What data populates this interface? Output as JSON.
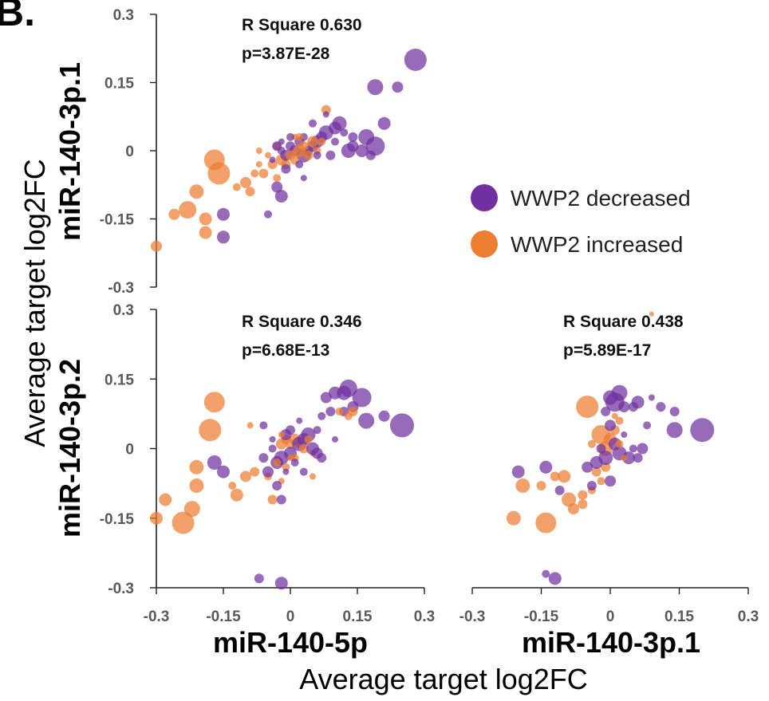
{
  "panel_label": "B.",
  "y_axis_title": "Average target log2FC",
  "x_axis_title": "Average target log2FC",
  "legend": [
    {
      "label": "WWP2 decreased",
      "color": "#7030A0"
    },
    {
      "label": "WWP2 increased",
      "color": "#ED7D31"
    }
  ],
  "chart_data": [
    {
      "type": "scatter",
      "xlabel": "miR-140-5p",
      "ylabel": "miR-140-3p.1",
      "xlim": [
        -0.3,
        0.3
      ],
      "ylim": [
        -0.3,
        0.3
      ],
      "yticks": [
        "0.3",
        "0.15",
        "0",
        "-0.15",
        "-0.3"
      ],
      "xticks": [],
      "annotation": [
        "R Square 0.630",
        "p=3.87E-28"
      ],
      "series": [
        {
          "name": "WWP2 decreased",
          "color": "#7030A0",
          "points": [
            [
              0.28,
              0.2,
              14
            ],
            [
              0.24,
              0.14,
              7
            ],
            [
              0.19,
              0.14,
              10
            ],
            [
              0.21,
              0.06,
              8
            ],
            [
              0.19,
              0.01,
              12
            ],
            [
              0.17,
              0.03,
              10
            ],
            [
              0.14,
              0.03,
              6
            ],
            [
              0.11,
              0.06,
              9
            ],
            [
              0.1,
              0.05,
              8
            ],
            [
              0.08,
              0.04,
              9
            ],
            [
              0.07,
              0.03,
              7
            ],
            [
              0.06,
              0.02,
              8
            ],
            [
              0.05,
              0.01,
              7
            ],
            [
              0.04,
              0.0,
              6
            ],
            [
              0.03,
              -0.01,
              9
            ],
            [
              0.02,
              0.02,
              6
            ],
            [
              0.01,
              0.0,
              7
            ],
            [
              0.0,
              0.01,
              6
            ],
            [
              -0.01,
              -0.01,
              7
            ],
            [
              -0.02,
              0.0,
              5
            ],
            [
              -0.03,
              0.01,
              6
            ],
            [
              0.03,
              0.03,
              5
            ],
            [
              0.06,
              -0.01,
              5
            ],
            [
              0.13,
              0.0,
              9
            ],
            [
              0.16,
              0.0,
              8
            ],
            [
              0.12,
              0.04,
              5
            ],
            [
              0.09,
              -0.01,
              6
            ],
            [
              0.02,
              -0.03,
              5
            ],
            [
              -0.01,
              -0.04,
              6
            ],
            [
              -0.03,
              -0.08,
              7
            ],
            [
              -0.02,
              -0.1,
              8
            ],
            [
              -0.05,
              -0.14,
              5
            ],
            [
              -0.15,
              -0.14,
              8
            ],
            [
              -0.15,
              -0.19,
              8
            ],
            [
              0.0,
              0.03,
              5
            ],
            [
              -0.02,
              0.02,
              4
            ],
            [
              0.05,
              0.06,
              5
            ],
            [
              0.08,
              0.08,
              4
            ],
            [
              0.1,
              0.02,
              5
            ],
            [
              0.14,
              0.01,
              7
            ],
            [
              0.18,
              -0.01,
              6
            ],
            [
              0.03,
              -0.06,
              4
            ],
            [
              -0.04,
              -0.02,
              4
            ]
          ]
        },
        {
          "name": "WWP2 increased",
          "color": "#ED7D31",
          "points": [
            [
              -0.3,
              -0.21,
              7
            ],
            [
              -0.26,
              -0.14,
              7
            ],
            [
              -0.23,
              -0.13,
              11
            ],
            [
              -0.19,
              -0.15,
              8
            ],
            [
              -0.21,
              -0.09,
              9
            ],
            [
              -0.19,
              -0.18,
              8
            ],
            [
              -0.17,
              -0.02,
              13
            ],
            [
              -0.16,
              -0.05,
              14
            ],
            [
              -0.1,
              -0.07,
              7
            ],
            [
              -0.09,
              -0.09,
              6
            ],
            [
              -0.08,
              -0.05,
              5
            ],
            [
              -0.06,
              -0.05,
              6
            ],
            [
              -0.04,
              -0.03,
              6
            ],
            [
              -0.03,
              0.01,
              5
            ],
            [
              -0.02,
              -0.02,
              7
            ],
            [
              -0.01,
              -0.03,
              6
            ],
            [
              0.0,
              -0.01,
              6
            ],
            [
              0.01,
              -0.02,
              6
            ],
            [
              0.02,
              0.0,
              8
            ],
            [
              0.03,
              0.01,
              6
            ],
            [
              0.04,
              -0.01,
              6
            ],
            [
              0.05,
              0.02,
              7
            ],
            [
              0.07,
              0.02,
              5
            ],
            [
              0.08,
              0.09,
              6
            ],
            [
              0.02,
              0.03,
              5
            ],
            [
              -0.05,
              -0.01,
              4
            ],
            [
              -0.07,
              0.0,
              4
            ],
            [
              -0.03,
              -0.06,
              5
            ],
            [
              0.06,
              0.0,
              5
            ],
            [
              -0.12,
              -0.08,
              5
            ],
            [
              -0.07,
              -0.03,
              4
            ],
            [
              0.01,
              0.03,
              4
            ]
          ]
        }
      ]
    },
    {
      "type": "scatter",
      "xlabel": "miR-140-5p",
      "ylabel": "miR-140-3p.2",
      "xlim": [
        -0.3,
        0.3
      ],
      "ylim": [
        -0.3,
        0.3
      ],
      "yticks": [
        "0.3",
        "0.15",
        "0",
        "-0.15",
        "-0.3"
      ],
      "xticks": [
        "-0.3",
        "-0.15",
        "0",
        "0.15",
        "0.3"
      ],
      "annotation": [
        "R Square 0.346",
        "p=6.68E-13"
      ],
      "series": [
        {
          "name": "WWP2 decreased",
          "color": "#7030A0",
          "points": [
            [
              0.25,
              0.05,
              15
            ],
            [
              0.21,
              0.07,
              7
            ],
            [
              0.16,
              0.11,
              12
            ],
            [
              0.17,
              0.06,
              10
            ],
            [
              0.13,
              0.13,
              11
            ],
            [
              0.12,
              0.12,
              9
            ],
            [
              0.1,
              0.12,
              8
            ],
            [
              0.08,
              0.11,
              7
            ],
            [
              0.14,
              0.09,
              7
            ],
            [
              0.12,
              0.08,
              6
            ],
            [
              0.09,
              0.08,
              6
            ],
            [
              0.07,
              0.07,
              5
            ],
            [
              0.04,
              0.03,
              9
            ],
            [
              0.03,
              0.02,
              8
            ],
            [
              0.02,
              0.01,
              9
            ],
            [
              0.0,
              -0.01,
              8
            ],
            [
              -0.02,
              -0.02,
              9
            ],
            [
              -0.03,
              -0.03,
              8
            ],
            [
              -0.01,
              0.03,
              7
            ],
            [
              0.0,
              0.04,
              6
            ],
            [
              0.05,
              0.0,
              8
            ],
            [
              0.06,
              -0.01,
              7
            ],
            [
              0.07,
              -0.02,
              6
            ],
            [
              -0.05,
              -0.05,
              7
            ],
            [
              -0.06,
              -0.02,
              6
            ],
            [
              -0.04,
              0.0,
              5
            ],
            [
              -0.03,
              -0.08,
              6
            ],
            [
              -0.02,
              -0.11,
              6
            ],
            [
              -0.17,
              -0.03,
              9
            ],
            [
              -0.15,
              -0.05,
              8
            ],
            [
              -0.06,
              0.05,
              5
            ],
            [
              -0.07,
              -0.28,
              6
            ],
            [
              -0.02,
              -0.29,
              8
            ],
            [
              0.03,
              -0.05,
              5
            ],
            [
              0.01,
              -0.03,
              5
            ],
            [
              0.1,
              0.02,
              4
            ],
            [
              -0.01,
              -0.05,
              4
            ],
            [
              0.02,
              0.06,
              4
            ],
            [
              0.06,
              0.04,
              5
            ],
            [
              -0.04,
              0.02,
              4
            ]
          ]
        },
        {
          "name": "WWP2 increased",
          "color": "#ED7D31",
          "points": [
            [
              -0.17,
              0.1,
              13
            ],
            [
              -0.18,
              0.04,
              14
            ],
            [
              -0.24,
              -0.16,
              14
            ],
            [
              -0.21,
              -0.04,
              9
            ],
            [
              -0.21,
              -0.08,
              9
            ],
            [
              -0.22,
              -0.13,
              10
            ],
            [
              -0.28,
              -0.11,
              8
            ],
            [
              -0.3,
              -0.15,
              8
            ],
            [
              -0.12,
              -0.1,
              8
            ],
            [
              -0.1,
              -0.06,
              7
            ],
            [
              -0.08,
              -0.05,
              6
            ],
            [
              -0.05,
              -0.06,
              5
            ],
            [
              -0.02,
              0.01,
              7
            ],
            [
              -0.01,
              0.02,
              6
            ],
            [
              0.0,
              0.01,
              6
            ],
            [
              0.01,
              0.02,
              7
            ],
            [
              0.02,
              0.01,
              5
            ],
            [
              0.03,
              0.0,
              6
            ],
            [
              0.04,
              0.02,
              5
            ],
            [
              0.05,
              -0.01,
              4
            ],
            [
              0.01,
              -0.02,
              5
            ],
            [
              -0.01,
              -0.04,
              5
            ],
            [
              -0.03,
              -0.03,
              5
            ],
            [
              -0.04,
              -0.11,
              6
            ],
            [
              -0.02,
              0.03,
              4
            ],
            [
              0.0,
              -0.02,
              4
            ],
            [
              0.14,
              0.08,
              6
            ],
            [
              0.11,
              0.08,
              5
            ],
            [
              0.13,
              0.07,
              5
            ],
            [
              -0.13,
              -0.08,
              5
            ],
            [
              -0.09,
              0.05,
              4
            ],
            [
              -0.02,
              -0.07,
              4
            ],
            [
              0.05,
              -0.06,
              4
            ]
          ]
        }
      ]
    },
    {
      "type": "scatter",
      "xlabel": "miR-140-3p.1",
      "ylabel": "miR-140-3p.2",
      "xlim": [
        -0.3,
        0.3
      ],
      "ylim": [
        -0.3,
        0.3
      ],
      "yticks": [],
      "xticks": [
        "-0.3",
        "-0.15",
        "0",
        "0.15",
        "0.3"
      ],
      "annotation": [
        "R Square 0.438",
        "p=5.89E-17"
      ],
      "series": [
        {
          "name": "WWP2 decreased",
          "color": "#7030A0",
          "points": [
            [
              0.2,
              0.04,
              15
            ],
            [
              0.14,
              0.04,
              10
            ],
            [
              0.14,
              0.08,
              6
            ],
            [
              0.11,
              0.09,
              6
            ],
            [
              0.06,
              0.1,
              8
            ],
            [
              0.05,
              0.09,
              6
            ],
            [
              0.03,
              0.09,
              7
            ],
            [
              0.02,
              0.12,
              10
            ],
            [
              0.01,
              0.1,
              12
            ],
            [
              0.0,
              0.11,
              9
            ],
            [
              -0.01,
              0.08,
              6
            ],
            [
              0.0,
              0.05,
              7
            ],
            [
              0.01,
              0.01,
              8
            ],
            [
              0.02,
              -0.01,
              9
            ],
            [
              0.04,
              -0.02,
              8
            ],
            [
              0.06,
              -0.02,
              6
            ],
            [
              0.07,
              0.0,
              7
            ],
            [
              -0.01,
              -0.02,
              9
            ],
            [
              -0.03,
              -0.03,
              8
            ],
            [
              -0.05,
              -0.04,
              7
            ],
            [
              -0.02,
              0.0,
              6
            ],
            [
              0.0,
              -0.07,
              7
            ],
            [
              -0.04,
              -0.08,
              6
            ],
            [
              -0.11,
              -0.09,
              6
            ],
            [
              -0.14,
              -0.04,
              8
            ],
            [
              -0.14,
              -0.27,
              5
            ],
            [
              -0.12,
              -0.28,
              8
            ],
            [
              0.08,
              0.05,
              5
            ],
            [
              0.05,
              0.0,
              5
            ],
            [
              -0.2,
              -0.05,
              8
            ],
            [
              0.09,
              0.11,
              4
            ],
            [
              0.03,
              0.03,
              4
            ]
          ]
        },
        {
          "name": "WWP2 increased",
          "color": "#ED7D31",
          "points": [
            [
              -0.05,
              0.09,
              14
            ],
            [
              -0.14,
              -0.16,
              13
            ],
            [
              -0.19,
              -0.08,
              9
            ],
            [
              -0.21,
              -0.15,
              9
            ],
            [
              -0.1,
              -0.06,
              8
            ],
            [
              -0.09,
              -0.11,
              9
            ],
            [
              -0.08,
              -0.13,
              7
            ],
            [
              -0.06,
              -0.1,
              6
            ],
            [
              -0.04,
              -0.09,
              5
            ],
            [
              -0.02,
              0.03,
              12
            ],
            [
              -0.01,
              0.0,
              9
            ],
            [
              0.0,
              0.02,
              8
            ],
            [
              0.01,
              0.04,
              6
            ],
            [
              0.02,
              0.06,
              5
            ],
            [
              -0.03,
              -0.05,
              6
            ],
            [
              -0.02,
              -0.07,
              5
            ],
            [
              -0.01,
              -0.04,
              6
            ],
            [
              -0.04,
              0.01,
              5
            ],
            [
              0.02,
              0.01,
              5
            ],
            [
              0.03,
              -0.02,
              4
            ],
            [
              0.01,
              0.07,
              4
            ],
            [
              -0.12,
              -0.06,
              6
            ],
            [
              -0.15,
              -0.08,
              6
            ],
            [
              -0.06,
              -0.12,
              6
            ],
            [
              0.09,
              0.29,
              3
            ]
          ]
        }
      ]
    }
  ]
}
